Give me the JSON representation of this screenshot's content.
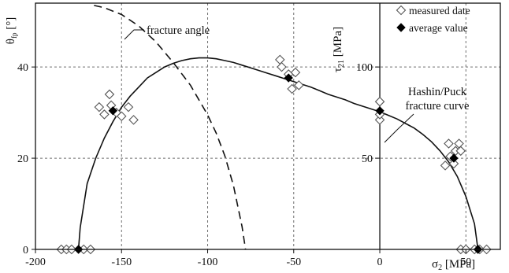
{
  "chart_data": {
    "type": "scatter",
    "title": "",
    "axes": {
      "x": {
        "label": "σ₂ [MPa]",
        "range": [
          -200,
          70
        ],
        "ticks": [
          -200,
          -150,
          -100,
          -50,
          0,
          50
        ]
      },
      "y_left": {
        "label": "θ_fp [°]",
        "range": [
          0,
          54
        ],
        "ticks": [
          0,
          20,
          40
        ]
      },
      "y_right": {
        "label": "τ₂₁ [MPa]",
        "range": [
          0,
          135
        ],
        "ticks": [
          50,
          100
        ]
      }
    },
    "grid": true,
    "legend": {
      "placement": "top-right",
      "entries": [
        {
          "marker": "open-diamond",
          "label": "measured date"
        },
        {
          "marker": "filled-diamond",
          "label": "average value"
        }
      ]
    },
    "annotations": [
      {
        "text": "fracture angle",
        "target": "dashed-curve"
      },
      {
        "lines": [
          "Hashin/Puck",
          "fracture curve"
        ],
        "target": "solid-curve"
      }
    ],
    "series": [
      {
        "kind": "solid-curve",
        "y_axis": "y_right",
        "x": [
          -175,
          -174,
          -170,
          -165,
          -160,
          -155,
          -150,
          -145,
          -140,
          -135,
          -130,
          -125,
          -120,
          -115,
          -110,
          -105,
          -100,
          -95,
          -90,
          -85,
          -80,
          -75,
          -70,
          -65,
          -60,
          -55,
          -50,
          -45,
          -40,
          -35,
          -30,
          -25,
          -20,
          -15,
          -10,
          -5,
          0,
          5,
          10,
          15,
          20,
          25,
          30,
          35,
          40,
          45,
          50,
          55,
          57
        ],
        "y": [
          0,
          12,
          36,
          50,
          61,
          70,
          78,
          84,
          89,
          94,
          97,
          100,
          102,
          103.5,
          104.5,
          105,
          105,
          104.5,
          103.5,
          102.5,
          101,
          99.5,
          98,
          96.5,
          95,
          93.5,
          92,
          90.5,
          89,
          87,
          85,
          83.5,
          82,
          80,
          78.5,
          77,
          75.5,
          73.5,
          71.5,
          69,
          66.5,
          63,
          59,
          54,
          48,
          40,
          29,
          14,
          0
        ]
      },
      {
        "kind": "dashed-curve",
        "y_axis": "y_left",
        "x": [
          -166,
          -160,
          -150,
          -140,
          -130,
          -120,
          -110,
          -100,
          -95,
          -90,
          -85,
          -80,
          -78
        ],
        "y": [
          53.5,
          53,
          51.5,
          49,
          45.5,
          41,
          36,
          29.5,
          25.5,
          20.5,
          14,
          5,
          0
        ]
      },
      {
        "name": "measured date",
        "marker": "open-diamond",
        "y_axis": "y_right",
        "x": [
          -185,
          -182,
          -179,
          -172,
          -168,
          -163,
          -160,
          -157,
          -153,
          -156,
          -150,
          -146,
          -143,
          -58,
          -57,
          -53,
          -51,
          -49,
          -47,
          0,
          0,
          0,
          38,
          41,
          44,
          47,
          40,
          43,
          46,
          47,
          50,
          55,
          58,
          62
        ],
        "y": [
          0,
          0,
          0,
          0,
          0,
          78,
          74,
          85,
          75,
          79,
          73,
          78,
          71,
          104,
          100,
          96,
          88,
          97,
          90,
          81,
          71,
          74,
          46,
          51,
          54,
          54,
          58,
          47,
          58,
          0,
          0,
          0,
          0,
          0
        ]
      },
      {
        "name": "average value",
        "marker": "filled-diamond",
        "y_axis": "y_right",
        "x": [
          -175,
          -155,
          -53,
          0,
          43,
          57
        ],
        "y": [
          0,
          76,
          94,
          76,
          50,
          0
        ]
      }
    ]
  }
}
